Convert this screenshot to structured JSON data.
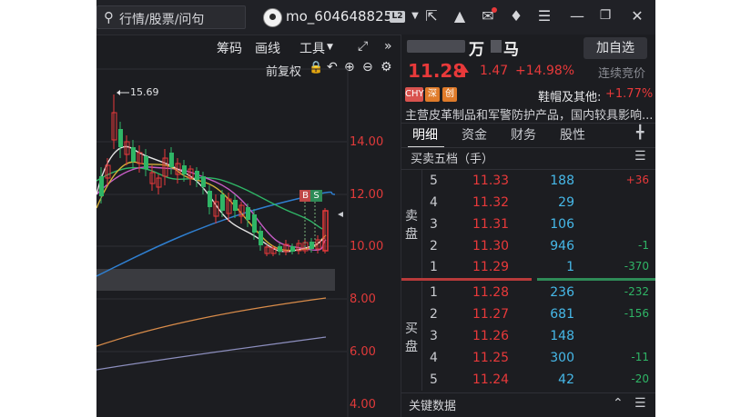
{
  "titlebar": {
    "search_placeholder": "行情/股票/问句",
    "username": "mo_604648825",
    "level_badge": "L2"
  },
  "toolbar": {
    "chip_label": "筹码",
    "draw_label": "画线",
    "tools_label": "工具",
    "adjust_label": "前复权"
  },
  "chart": {
    "high_label": "15.69",
    "buy_marker": "B",
    "sell_marker": "S",
    "price_ticks": [
      "14.00",
      "12.00",
      "10.00",
      "8.00",
      "6.00",
      "4.00"
    ]
  },
  "stock": {
    "name_visible": "万",
    "name_visible2": "马",
    "add_watch": "加自选",
    "price": "11.28",
    "change": "1.47",
    "change_pct": "+14.98%",
    "auction_label": "连续竞价",
    "tags": [
      "CHY",
      "深",
      "创"
    ],
    "industry": "鞋帽及其他:",
    "industry_pct": "+1.77%",
    "description": "主营皮革制品和军警防护产品，国内较具影响..."
  },
  "tabs": [
    "明细",
    "资金",
    "财务",
    "股性"
  ],
  "order_book": {
    "title": "买卖五档（手）",
    "sell_label": [
      "卖",
      "盘"
    ],
    "buy_label": [
      "买",
      "盘"
    ],
    "sell": [
      {
        "level": "5",
        "price": "11.33",
        "volume": "188",
        "change": "+36"
      },
      {
        "level": "4",
        "price": "11.32",
        "volume": "29",
        "change": ""
      },
      {
        "level": "3",
        "price": "11.31",
        "volume": "106",
        "change": ""
      },
      {
        "level": "2",
        "price": "11.30",
        "volume": "946",
        "change": "-1"
      },
      {
        "level": "1",
        "price": "11.29",
        "volume": "1",
        "change": "-370"
      }
    ],
    "buy": [
      {
        "level": "1",
        "price": "11.28",
        "volume": "236",
        "change": "-232"
      },
      {
        "level": "2",
        "price": "11.27",
        "volume": "681",
        "change": "-156"
      },
      {
        "level": "3",
        "price": "11.26",
        "volume": "148",
        "change": ""
      },
      {
        "level": "4",
        "price": "11.25",
        "volume": "300",
        "change": "-11"
      },
      {
        "level": "5",
        "price": "11.24",
        "volume": "42",
        "change": "-20"
      }
    ]
  },
  "key_data_label": "关键数据",
  "colors": {
    "up": "#e8393a",
    "down": "#2fb566",
    "volume": "#46b8e8",
    "background": "#1c1d21"
  }
}
